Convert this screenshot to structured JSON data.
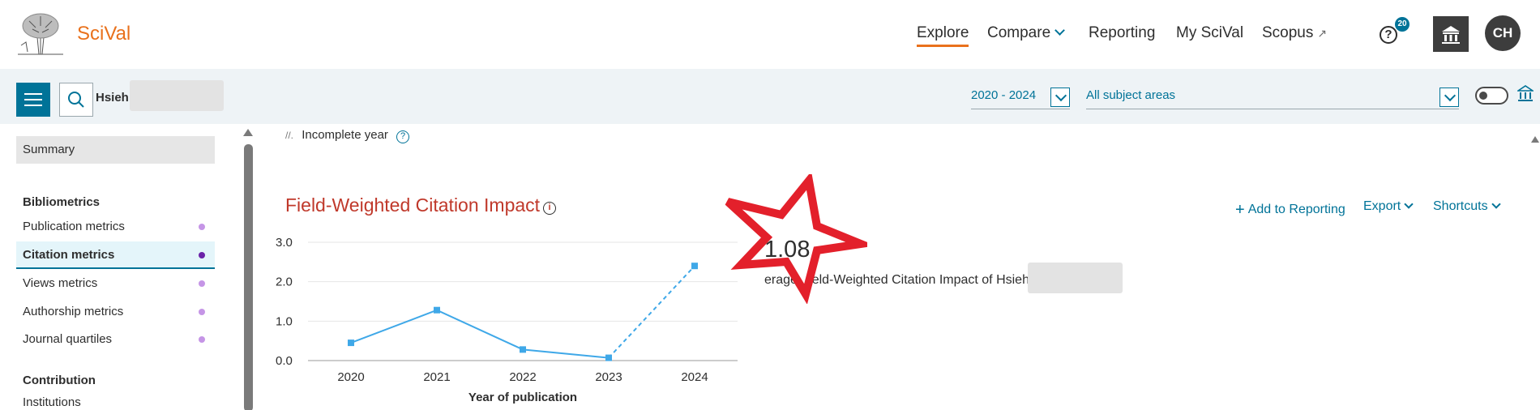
{
  "header": {
    "brand": "SciVal",
    "nav": [
      {
        "label": "Explore"
      },
      {
        "label": "Compare"
      },
      {
        "label": "Reporting"
      },
      {
        "label": "My SciVal"
      },
      {
        "label": "Scopus"
      }
    ],
    "help_badge": "20",
    "avatar_initials": "CH"
  },
  "context": {
    "entity": "Hsieh",
    "year_range": "2020 - 2024",
    "subject": "All subject areas"
  },
  "sidebar": {
    "summary": "Summary",
    "section1": "Bibliometrics",
    "items": [
      {
        "label": "Publication metrics"
      },
      {
        "label": "Citation metrics"
      },
      {
        "label": "Views metrics"
      },
      {
        "label": "Authorship metrics"
      },
      {
        "label": "Journal quartiles"
      }
    ],
    "section2": "Contribution",
    "item_institutions": "Institutions"
  },
  "main": {
    "incomplete_year": "Incomplete year",
    "title": "Field-Weighted Citation Impact",
    "actions": {
      "add_to_reporting": "Add to Reporting",
      "export": "Export",
      "shortcuts": "Shortcuts"
    },
    "metric_value": "1.08",
    "metric_desc": "erage Field-Weighted Citation Impact of Hsieh"
  },
  "chart_data": {
    "type": "line",
    "x": [
      "2020",
      "2021",
      "2022",
      "2023",
      "2024"
    ],
    "values": [
      0.45,
      1.28,
      0.28,
      0.07,
      2.4
    ],
    "incomplete_last": true,
    "xlabel": "Year of publication",
    "ylabel": "",
    "yticks": [
      "0.0",
      "1.0",
      "2.0",
      "3.0"
    ],
    "ylim": [
      0,
      3
    ],
    "color": "#3fa8e8",
    "grid": true
  }
}
